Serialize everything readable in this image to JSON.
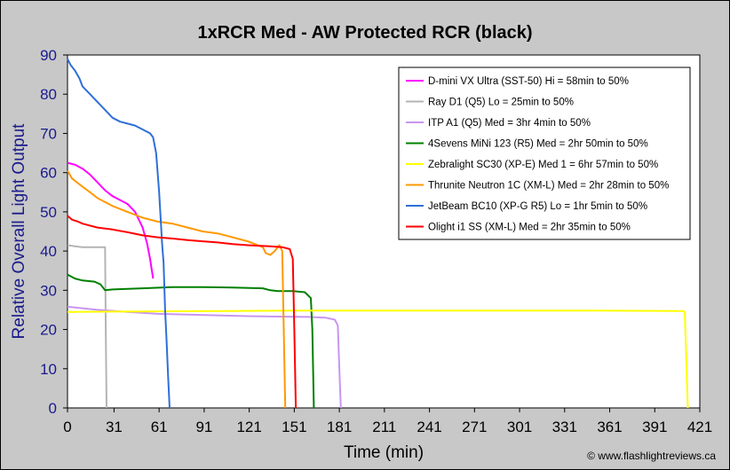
{
  "chart_data": {
    "type": "line",
    "title": "1xRCR Med - AW Protected RCR (black)",
    "xlabel": "Time (min)",
    "ylabel": "Relative Overall Light Output",
    "credit": "© www.flashlightreviews.ca",
    "xlim": [
      0,
      421
    ],
    "ylim": [
      0,
      90
    ],
    "xticks": [
      0,
      31,
      61,
      91,
      121,
      151,
      181,
      211,
      241,
      271,
      301,
      331,
      361,
      391,
      421
    ],
    "yticks": [
      0,
      10,
      20,
      30,
      40,
      50,
      60,
      70,
      80,
      90
    ],
    "grid": false,
    "legend_position": "top-right",
    "plot_background": "#ffffff",
    "frame_background": "#c8c8c8",
    "series": [
      {
        "name": "D-mini VX Ultra (SST-50) Hi = 58min to 50%",
        "color": "#ff00ff",
        "points": [
          [
            0,
            62.5
          ],
          [
            5,
            62
          ],
          [
            10,
            61
          ],
          [
            15,
            59.5
          ],
          [
            20,
            57.5
          ],
          [
            25,
            55.5
          ],
          [
            30,
            54
          ],
          [
            35,
            53
          ],
          [
            40,
            52
          ],
          [
            45,
            50
          ],
          [
            50,
            46
          ],
          [
            53,
            42
          ],
          [
            55,
            38
          ],
          [
            57,
            33
          ]
        ]
      },
      {
        "name": "Ray D1 (Q5) Lo = 25min to 50%",
        "color": "#b4b4b4",
        "points": [
          [
            0,
            41.5
          ],
          [
            5,
            41.2
          ],
          [
            10,
            41
          ],
          [
            20,
            41
          ],
          [
            25,
            41
          ],
          [
            25.5,
            20
          ],
          [
            26,
            0
          ]
        ]
      },
      {
        "name": "ITP A1 (Q5) Med = 3hr 4min to 50%",
        "color": "#c896f0",
        "points": [
          [
            0,
            25.8
          ],
          [
            20,
            25
          ],
          [
            40,
            24.5
          ],
          [
            60,
            24
          ],
          [
            80,
            23.8
          ],
          [
            100,
            23.6
          ],
          [
            120,
            23.4
          ],
          [
            140,
            23.3
          ],
          [
            160,
            23.2
          ],
          [
            172,
            23
          ],
          [
            178,
            22.5
          ],
          [
            180,
            21
          ],
          [
            181,
            10
          ],
          [
            182,
            0
          ]
        ]
      },
      {
        "name": "4Sevens MiNi 123 (R5) Med = 2hr 50min to 50%",
        "color": "#008000",
        "points": [
          [
            0,
            34
          ],
          [
            5,
            33
          ],
          [
            10,
            32.5
          ],
          [
            18,
            32.2
          ],
          [
            22,
            31.5
          ],
          [
            25,
            30
          ],
          [
            30,
            30.2
          ],
          [
            50,
            30.5
          ],
          [
            70,
            30.8
          ],
          [
            90,
            30.8
          ],
          [
            110,
            30.7
          ],
          [
            130,
            30.5
          ],
          [
            135,
            30
          ],
          [
            140,
            29.8
          ],
          [
            150,
            29.8
          ],
          [
            158,
            29.5
          ],
          [
            162,
            28
          ],
          [
            163,
            20
          ],
          [
            164,
            0
          ]
        ]
      },
      {
        "name": "Zebralight SC30 (XP-E) Med 1 = 6hr 57min to 50%",
        "color": "#ffff00",
        "points": [
          [
            0,
            24.5
          ],
          [
            50,
            24.6
          ],
          [
            100,
            24.7
          ],
          [
            150,
            24.8
          ],
          [
            200,
            24.8
          ],
          [
            250,
            24.8
          ],
          [
            300,
            24.8
          ],
          [
            350,
            24.8
          ],
          [
            410,
            24.7
          ],
          [
            411,
            24.5
          ],
          [
            412,
            12
          ],
          [
            413,
            0
          ]
        ]
      },
      {
        "name": "Thrunite Neutron 1C (XM-L) Med = 2hr 28min to 50%",
        "color": "#ff9900",
        "points": [
          [
            0,
            60.5
          ],
          [
            3,
            58.5
          ],
          [
            8,
            57
          ],
          [
            15,
            55
          ],
          [
            20,
            53.5
          ],
          [
            30,
            51.5
          ],
          [
            40,
            50
          ],
          [
            50,
            48.5
          ],
          [
            60,
            47.5
          ],
          [
            70,
            47
          ],
          [
            80,
            46
          ],
          [
            90,
            45
          ],
          [
            100,
            44.5
          ],
          [
            110,
            43.5
          ],
          [
            120,
            42.5
          ],
          [
            130,
            41
          ],
          [
            132,
            39.5
          ],
          [
            135,
            39
          ],
          [
            138,
            40
          ],
          [
            141,
            41.5
          ],
          [
            143,
            40
          ],
          [
            144,
            20
          ],
          [
            145,
            0
          ]
        ]
      },
      {
        "name": "JetBeam BC10 (XP-G R5) Lo = 1hr 5min to 50%",
        "color": "#2f6fd9",
        "points": [
          [
            0,
            89
          ],
          [
            2,
            87.5
          ],
          [
            5,
            86
          ],
          [
            8,
            84
          ],
          [
            10,
            82
          ],
          [
            15,
            80
          ],
          [
            20,
            78
          ],
          [
            25,
            76
          ],
          [
            30,
            74
          ],
          [
            35,
            73
          ],
          [
            40,
            72.5
          ],
          [
            45,
            72
          ],
          [
            50,
            71
          ],
          [
            55,
            70
          ],
          [
            57,
            69
          ],
          [
            59,
            65
          ],
          [
            61,
            55
          ],
          [
            63,
            42
          ],
          [
            64,
            37
          ],
          [
            65,
            25
          ],
          [
            66,
            17
          ],
          [
            67,
            8
          ],
          [
            68,
            0
          ]
        ]
      },
      {
        "name": "Olight i1 SS (XM-L) Med = 2hr 35min to 50%",
        "color": "#ff0000",
        "points": [
          [
            0,
            49
          ],
          [
            3,
            48
          ],
          [
            7,
            47.5
          ],
          [
            10,
            47
          ],
          [
            20,
            46
          ],
          [
            30,
            45.5
          ],
          [
            40,
            44.8
          ],
          [
            50,
            44
          ],
          [
            60,
            43.5
          ],
          [
            70,
            43.2
          ],
          [
            80,
            42.8
          ],
          [
            90,
            42.5
          ],
          [
            100,
            42.2
          ],
          [
            110,
            41.8
          ],
          [
            120,
            41.5
          ],
          [
            135,
            41.2
          ],
          [
            143,
            41
          ],
          [
            148,
            40.5
          ],
          [
            150,
            38
          ],
          [
            151,
            20
          ],
          [
            152,
            0
          ]
        ]
      }
    ]
  }
}
